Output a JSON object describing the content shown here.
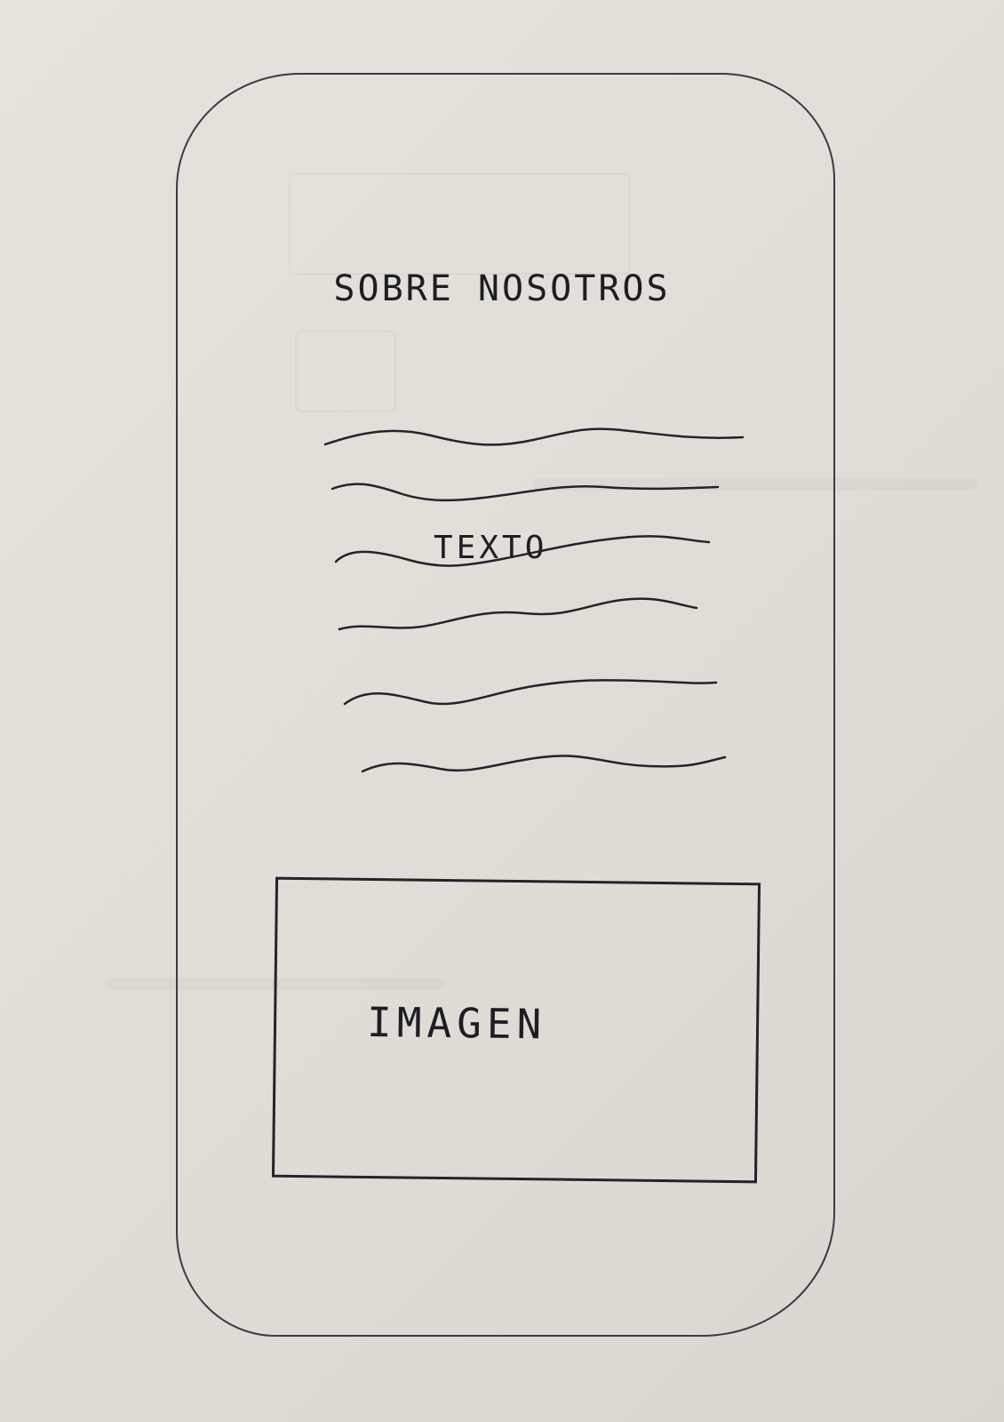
{
  "sketch": {
    "title": "SOBRE NOSOTROS",
    "text_placeholder": "TEXTO",
    "image_placeholder": "IMAGEN"
  },
  "colors": {
    "paper": "#e3dfd9",
    "ink": "#1e1e22"
  },
  "icons": {
    "text_lines": "wavy-line-placeholder"
  }
}
